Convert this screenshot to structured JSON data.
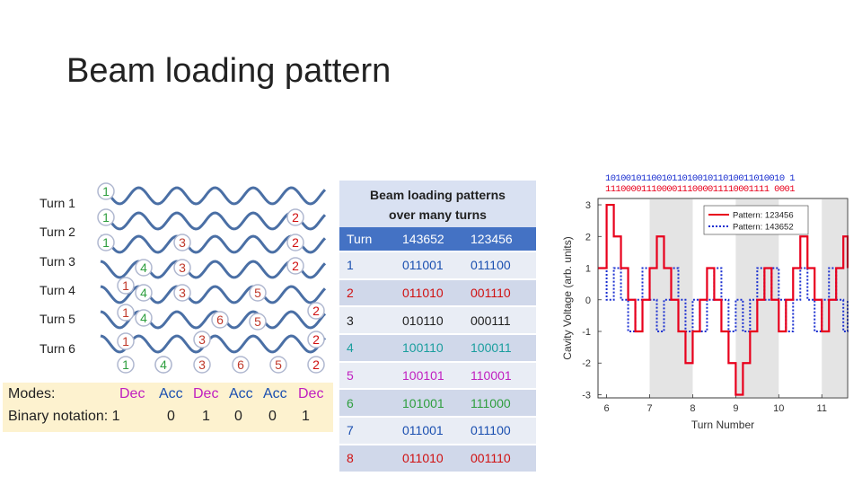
{
  "slide": {
    "title": "Beam loading pattern"
  },
  "diagram": {
    "turn_labels": [
      "Turn 1",
      "Turn 2",
      "Turn 3",
      "Turn 4",
      "Turn 5",
      "Turn 6"
    ],
    "bunch_marks": [
      {
        "text": "1",
        "color": "#2e9e3e"
      },
      {
        "text": "1",
        "color": "#2e9e3e"
      },
      {
        "text": "1",
        "color": "#2e9e3e"
      },
      {
        "text": "2",
        "color": "#d01010"
      },
      {
        "text": "2",
        "color": "#d01010"
      },
      {
        "text": "2",
        "color": "#d01010"
      },
      {
        "text": "3",
        "color": "#c0392b"
      },
      {
        "text": "3",
        "color": "#c0392b"
      },
      {
        "text": "3",
        "color": "#c0392b"
      },
      {
        "text": "4",
        "color": "#2e9e3e"
      },
      {
        "text": "4",
        "color": "#2e9e3e"
      },
      {
        "text": "4",
        "color": "#2e9e3e"
      },
      {
        "text": "1",
        "color": "#c0392b"
      },
      {
        "text": "1",
        "color": "#c0392b"
      },
      {
        "text": "5",
        "color": "#c0392b"
      },
      {
        "text": "2",
        "color": "#d01010"
      },
      {
        "text": "6",
        "color": "#c0392b"
      },
      {
        "text": "5",
        "color": "#c0392b"
      },
      {
        "text": "1",
        "color": "#c0392b"
      },
      {
        "text": "4",
        "color": "#2e9e3e"
      },
      {
        "text": "3",
        "color": "#c0392b"
      },
      {
        "text": "2",
        "color": "#d01010"
      },
      {
        "text": "1",
        "color": "#2e9e3e"
      },
      {
        "text": "4",
        "color": "#2e9e3e"
      },
      {
        "text": "3",
        "color": "#c0392b"
      },
      {
        "text": "6",
        "color": "#c0392b"
      },
      {
        "text": "5",
        "color": "#c0392b"
      },
      {
        "text": "2",
        "color": "#d01010"
      }
    ],
    "modes_label": "Modes:",
    "binary_label": "Binary notation: 1",
    "modes": [
      {
        "text": "Dec",
        "color": "#c020c0"
      },
      {
        "text": "Acc",
        "color": "#1a4fb0"
      },
      {
        "text": "Dec",
        "color": "#c020c0"
      },
      {
        "text": "Acc",
        "color": "#1a4fb0"
      },
      {
        "text": "Acc",
        "color": "#1a4fb0"
      },
      {
        "text": "Dec",
        "color": "#c020c0"
      }
    ],
    "binary_digits": [
      "0",
      "1",
      "0",
      "0",
      "1"
    ],
    "wave_color": "#4a6fa5",
    "ring_color": "#b0b8d0"
  },
  "table": {
    "title_line1": "Beam loading patterns",
    "title_line2": "over many turns",
    "headers": [
      "Turn",
      "143652",
      "123456"
    ],
    "rows": [
      {
        "turn": "1",
        "a": "011001",
        "b": "011100",
        "color": "#1a4fb0"
      },
      {
        "turn": "2",
        "a": "011010",
        "b": "001110",
        "color": "#d01010"
      },
      {
        "turn": "3",
        "a": "010110",
        "b": "000111",
        "color": "#222222"
      },
      {
        "turn": "4",
        "a": "100110",
        "b": "100011",
        "color": "#1a9e9e"
      },
      {
        "turn": "5",
        "a": "100101",
        "b": "110001",
        "color": "#c020c0"
      },
      {
        "turn": "6",
        "a": "101001",
        "b": "111000",
        "color": "#2e9e3e"
      },
      {
        "turn": "7",
        "a": "011001",
        "b": "011100",
        "color": "#1a4fb0"
      },
      {
        "turn": "8",
        "a": "011010",
        "b": "001110",
        "color": "#d01010"
      }
    ]
  },
  "chart_data": {
    "type": "line",
    "xlabel": "Turn Number",
    "ylabel": "Cavity Voltage (arb. units)",
    "xlim": [
      5.8,
      11.6
    ],
    "ylim": [
      -3.1,
      3.2
    ],
    "xticks": [
      6,
      7,
      8,
      9,
      10,
      11
    ],
    "yticks": [
      -3,
      -2,
      -1,
      0,
      1,
      2,
      3
    ],
    "shaded_turns": [
      [
        7,
        8
      ],
      [
        9,
        10
      ],
      [
        11,
        11.6
      ]
    ],
    "legend_placement": "top-right",
    "top_bits_blue": "10100101100101101001011010011010010 1",
    "top_bits_red": "11100001110000111000011110001111 0001",
    "series": [
      {
        "name": "Pattern: 123456",
        "color": "#e8001c",
        "style": "solid",
        "x": [
          5.8,
          6,
          6.167,
          6.333,
          6.5,
          6.667,
          6.833,
          7,
          7.167,
          7.333,
          7.5,
          7.667,
          7.833,
          8,
          8.167,
          8.333,
          8.5,
          8.667,
          8.833,
          9,
          9.167,
          9.333,
          9.5,
          9.667,
          9.833,
          10,
          10.167,
          10.333,
          10.5,
          10.667,
          10.833,
          11,
          11.167,
          11.333,
          11.5,
          11.6
        ],
        "y": [
          1,
          3,
          2,
          1,
          0,
          -1,
          0,
          1,
          2,
          1,
          0,
          -1,
          -2,
          -1,
          0,
          1,
          0,
          -1,
          -2,
          -3,
          -2,
          -1,
          0,
          1,
          0,
          -1,
          0,
          1,
          2,
          1,
          0,
          -1,
          0,
          1,
          2,
          1
        ]
      },
      {
        "name": "Pattern: 143652",
        "color": "#1a2fd0",
        "style": "dotted",
        "x": [
          5.8,
          6,
          6.167,
          6.333,
          6.5,
          6.667,
          6.833,
          7,
          7.167,
          7.333,
          7.5,
          7.667,
          7.833,
          8,
          8.167,
          8.333,
          8.5,
          8.667,
          8.833,
          9,
          9.167,
          9.333,
          9.5,
          9.667,
          9.833,
          10,
          10.167,
          10.333,
          10.5,
          10.667,
          10.833,
          11,
          11.167,
          11.333,
          11.5,
          11.6
        ],
        "y": [
          1,
          0,
          1,
          0,
          -1,
          0,
          1,
          0,
          -1,
          0,
          1,
          0,
          -1,
          0,
          -1,
          0,
          1,
          0,
          -1,
          0,
          -1,
          0,
          1,
          0,
          1,
          0,
          -1,
          0,
          1,
          0,
          -1,
          0,
          1,
          0,
          -1,
          0
        ]
      }
    ]
  }
}
